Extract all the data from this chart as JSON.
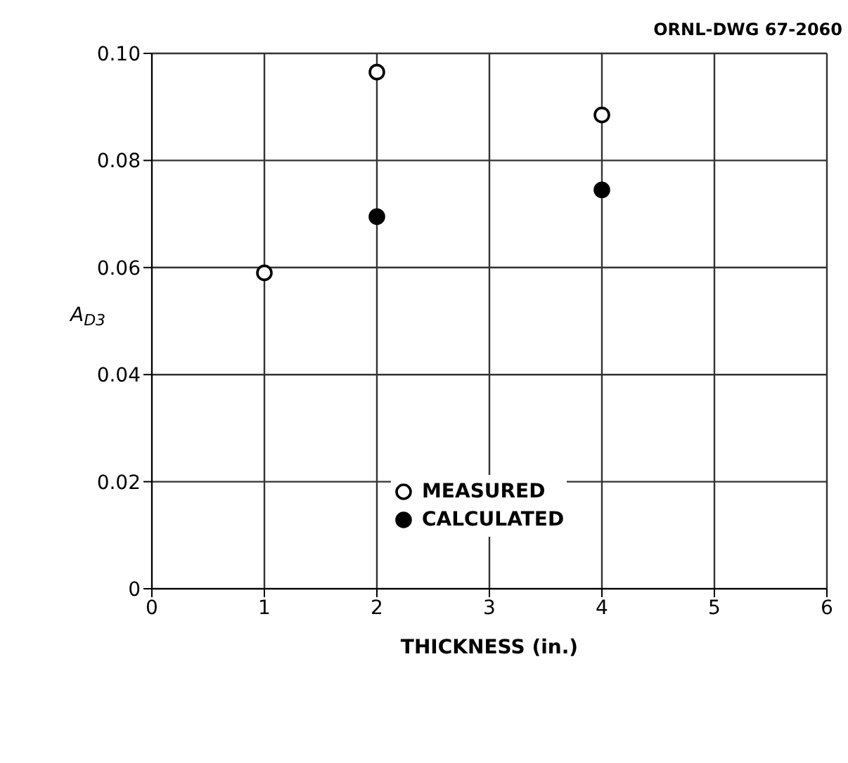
{
  "chart_data": {
    "type": "scatter",
    "xlabel": "THICKNESS (in.)",
    "ylabel": "A$_{D3}$",
    "annotations": [
      "ORNL-DWG 67-2060"
    ],
    "xlim": [
      0,
      6
    ],
    "xticks": [
      0,
      1,
      2,
      3,
      4,
      5,
      6
    ],
    "ylim": [
      0,
      0.1
    ],
    "yticks": [
      0,
      0.02,
      0.04,
      0.06,
      0.08,
      {
        "value": 0.1,
        "label": "0.10"
      }
    ],
    "grid": true,
    "legend": "center",
    "marker": "circle",
    "series": [
      {
        "name": "MEASURED",
        "color": "#ffffff",
        "x": [
          1,
          2,
          4
        ],
        "values": [
          0.059,
          0.0965,
          0.0885
        ]
      },
      {
        "name": "CALCULATED",
        "color": "#000000",
        "x": [
          2,
          4
        ],
        "values": [
          0.0695,
          0.0745
        ]
      }
    ]
  }
}
